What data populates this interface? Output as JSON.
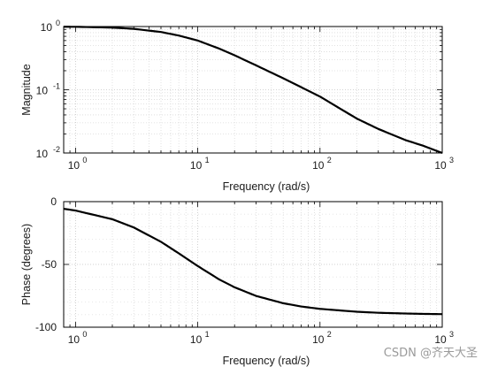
{
  "chart_data": [
    {
      "type": "line",
      "title": "",
      "xlabel": "Frequency (rad/s)",
      "ylabel": "Magnitude",
      "xscale": "log",
      "yscale": "log",
      "xlim": [
        0.8,
        1000
      ],
      "ylim": [
        0.01,
        1
      ],
      "grid": true,
      "x_ticks": [
        {
          "base": "10",
          "exp": "0"
        },
        {
          "base": "10",
          "exp": "1"
        },
        {
          "base": "10",
          "exp": "2"
        },
        {
          "base": "10",
          "exp": "3"
        }
      ],
      "y_ticks": [
        {
          "base": "10",
          "exp": "-2"
        },
        {
          "base": "10",
          "exp": "-1"
        },
        {
          "base": "10",
          "exp": "0"
        }
      ],
      "series": [
        {
          "color": "#000000",
          "x": [
            0.8,
            1,
            2,
            3,
            5,
            7,
            10,
            15,
            20,
            30,
            50,
            70,
            100,
            200,
            300,
            500,
            700,
            1000
          ],
          "y": [
            0.992,
            0.99,
            0.962,
            0.919,
            0.819,
            0.72,
            0.6,
            0.447,
            0.351,
            0.243,
            0.152,
            0.11,
            0.078,
            0.035,
            0.024,
            0.016,
            0.013,
            0.01
          ]
        }
      ]
    },
    {
      "type": "line",
      "title": "",
      "xlabel": "Frequency (rad/s)",
      "ylabel": "Phase (degrees)",
      "xscale": "log",
      "yscale": "linear",
      "xlim": [
        0.8,
        1000
      ],
      "ylim": [
        -100,
        0
      ],
      "grid": true,
      "x_ticks": [
        {
          "base": "10",
          "exp": "0"
        },
        {
          "base": "10",
          "exp": "1"
        },
        {
          "base": "10",
          "exp": "2"
        },
        {
          "base": "10",
          "exp": "3"
        }
      ],
      "y_ticks": [
        {
          "label": "-100",
          "value": -100
        },
        {
          "label": "-50",
          "value": -50
        },
        {
          "label": "0",
          "value": 0
        }
      ],
      "series": [
        {
          "color": "#000000",
          "x": [
            0.8,
            1,
            2,
            3,
            5,
            7,
            10,
            15,
            20,
            30,
            50,
            70,
            100,
            200,
            300,
            500,
            700,
            1000
          ],
          "y": [
            -5.7,
            -7.1,
            -14.0,
            -20.6,
            -32.0,
            -41.2,
            -51.3,
            -62.0,
            -68.2,
            -75.1,
            -80.9,
            -83.5,
            -85.4,
            -87.7,
            -88.5,
            -89.1,
            -89.4,
            -89.6
          ]
        }
      ]
    }
  ],
  "watermark": "CSDN @齐天大圣"
}
